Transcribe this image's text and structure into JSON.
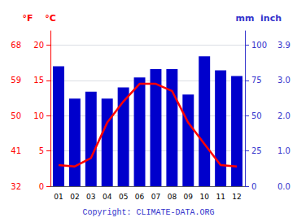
{
  "chart_data": {
    "type": "bar",
    "categories": [
      "01",
      "02",
      "03",
      "04",
      "05",
      "06",
      "07",
      "08",
      "09",
      "10",
      "11",
      "12"
    ],
    "series": [
      {
        "type": "bar",
        "axis": "y2",
        "color": "#0000cc",
        "values": [
          85,
          62,
          67,
          62,
          70,
          77,
          83,
          83,
          65,
          92,
          82,
          78
        ]
      },
      {
        "type": "line",
        "color": "#ff0000",
        "values": [
          3.0,
          2.8,
          4.0,
          9.0,
          12.0,
          14.5,
          14.5,
          13.5,
          9.0,
          6.0,
          3.0,
          2.8
        ]
      }
    ],
    "ylabel": "°C",
    "y_color": "#ff0000",
    "ylim": [
      0,
      22
    ],
    "yticks": [
      0,
      5,
      10,
      15,
      20
    ],
    "y_outer_label": "°F",
    "y_outer_ticks": [
      {
        "value": 0,
        "label": "32"
      },
      {
        "value": 5,
        "label": "41"
      },
      {
        "value": 10,
        "label": "50"
      },
      {
        "value": 15,
        "label": "59"
      },
      {
        "value": 20,
        "label": "68"
      }
    ],
    "y2label": "mm",
    "y2_color": "#3333cc",
    "y2lim": [
      0,
      110
    ],
    "y2ticks": [
      0,
      25,
      50,
      75,
      100
    ],
    "y2_outer_label": "inch",
    "y2_outer_ticks": [
      {
        "value": 0,
        "label": "0.0"
      },
      {
        "value": 25,
        "label": "1.0"
      },
      {
        "value": 50,
        "label": "2.0"
      },
      {
        "value": 75,
        "label": "3.0"
      },
      {
        "value": 100,
        "label": "3.9"
      }
    ],
    "grid": true,
    "annotations": [
      "Copyright: CLIMATE-DATA.ORG"
    ]
  }
}
